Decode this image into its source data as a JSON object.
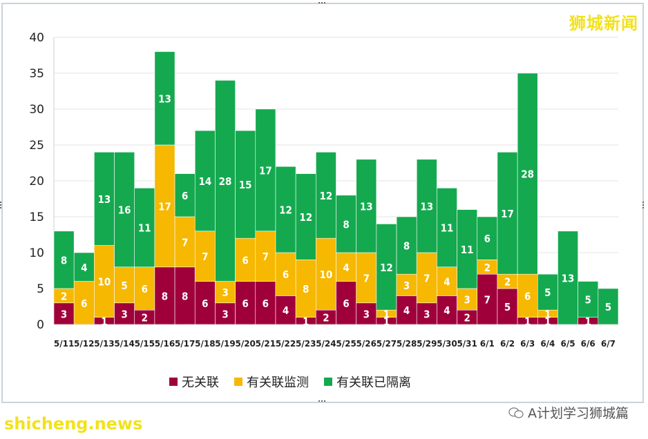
{
  "brand": "狮城新闻",
  "watermark_left": "shicheng.news",
  "watermark_right": "A计划学习狮城篇",
  "colors": {
    "unlinked": "#a0003a",
    "monitored": "#f6b800",
    "quarantined": "#14a94f",
    "brand_yellow": "#f2e21a"
  },
  "chart_data": {
    "type": "bar",
    "stacked": true,
    "categories": [
      "5/11",
      "5/12",
      "5/13",
      "5/14",
      "5/15",
      "5/16",
      "5/17",
      "5/18",
      "5/19",
      "5/20",
      "5/21",
      "5/22",
      "5/23",
      "5/24",
      "5/25",
      "5/26",
      "5/27",
      "5/28",
      "5/29",
      "5/30",
      "5/31",
      "6/1",
      "6/2",
      "6/3",
      "6/4",
      "6/5",
      "6/6",
      "6/7"
    ],
    "series": [
      {
        "name": "无关联",
        "color": "#a0003a",
        "values": [
          3,
          0,
          1,
          3,
          2,
          8,
          8,
          6,
          3,
          6,
          6,
          4,
          1,
          2,
          6,
          3,
          1,
          4,
          3,
          4,
          2,
          7,
          5,
          1,
          1,
          0,
          1,
          0
        ]
      },
      {
        "name": "有关联监测",
        "color": "#f6b800",
        "values": [
          2,
          6,
          10,
          5,
          6,
          17,
          7,
          7,
          3,
          6,
          7,
          6,
          8,
          10,
          4,
          7,
          1,
          3,
          7,
          4,
          3,
          2,
          2,
          6,
          1,
          0,
          0,
          0
        ]
      },
      {
        "name": "有关联已隔离",
        "color": "#14a94f",
        "values": [
          8,
          4,
          13,
          16,
          11,
          13,
          6,
          14,
          28,
          15,
          17,
          12,
          12,
          12,
          8,
          13,
          12,
          8,
          13,
          11,
          11,
          6,
          17,
          28,
          5,
          13,
          5,
          5
        ]
      }
    ],
    "ylim": [
      0,
      40
    ],
    "yticks": [
      0,
      5,
      10,
      15,
      20,
      25,
      30,
      35,
      40
    ],
    "grid": true,
    "legend_position": "bottom"
  }
}
